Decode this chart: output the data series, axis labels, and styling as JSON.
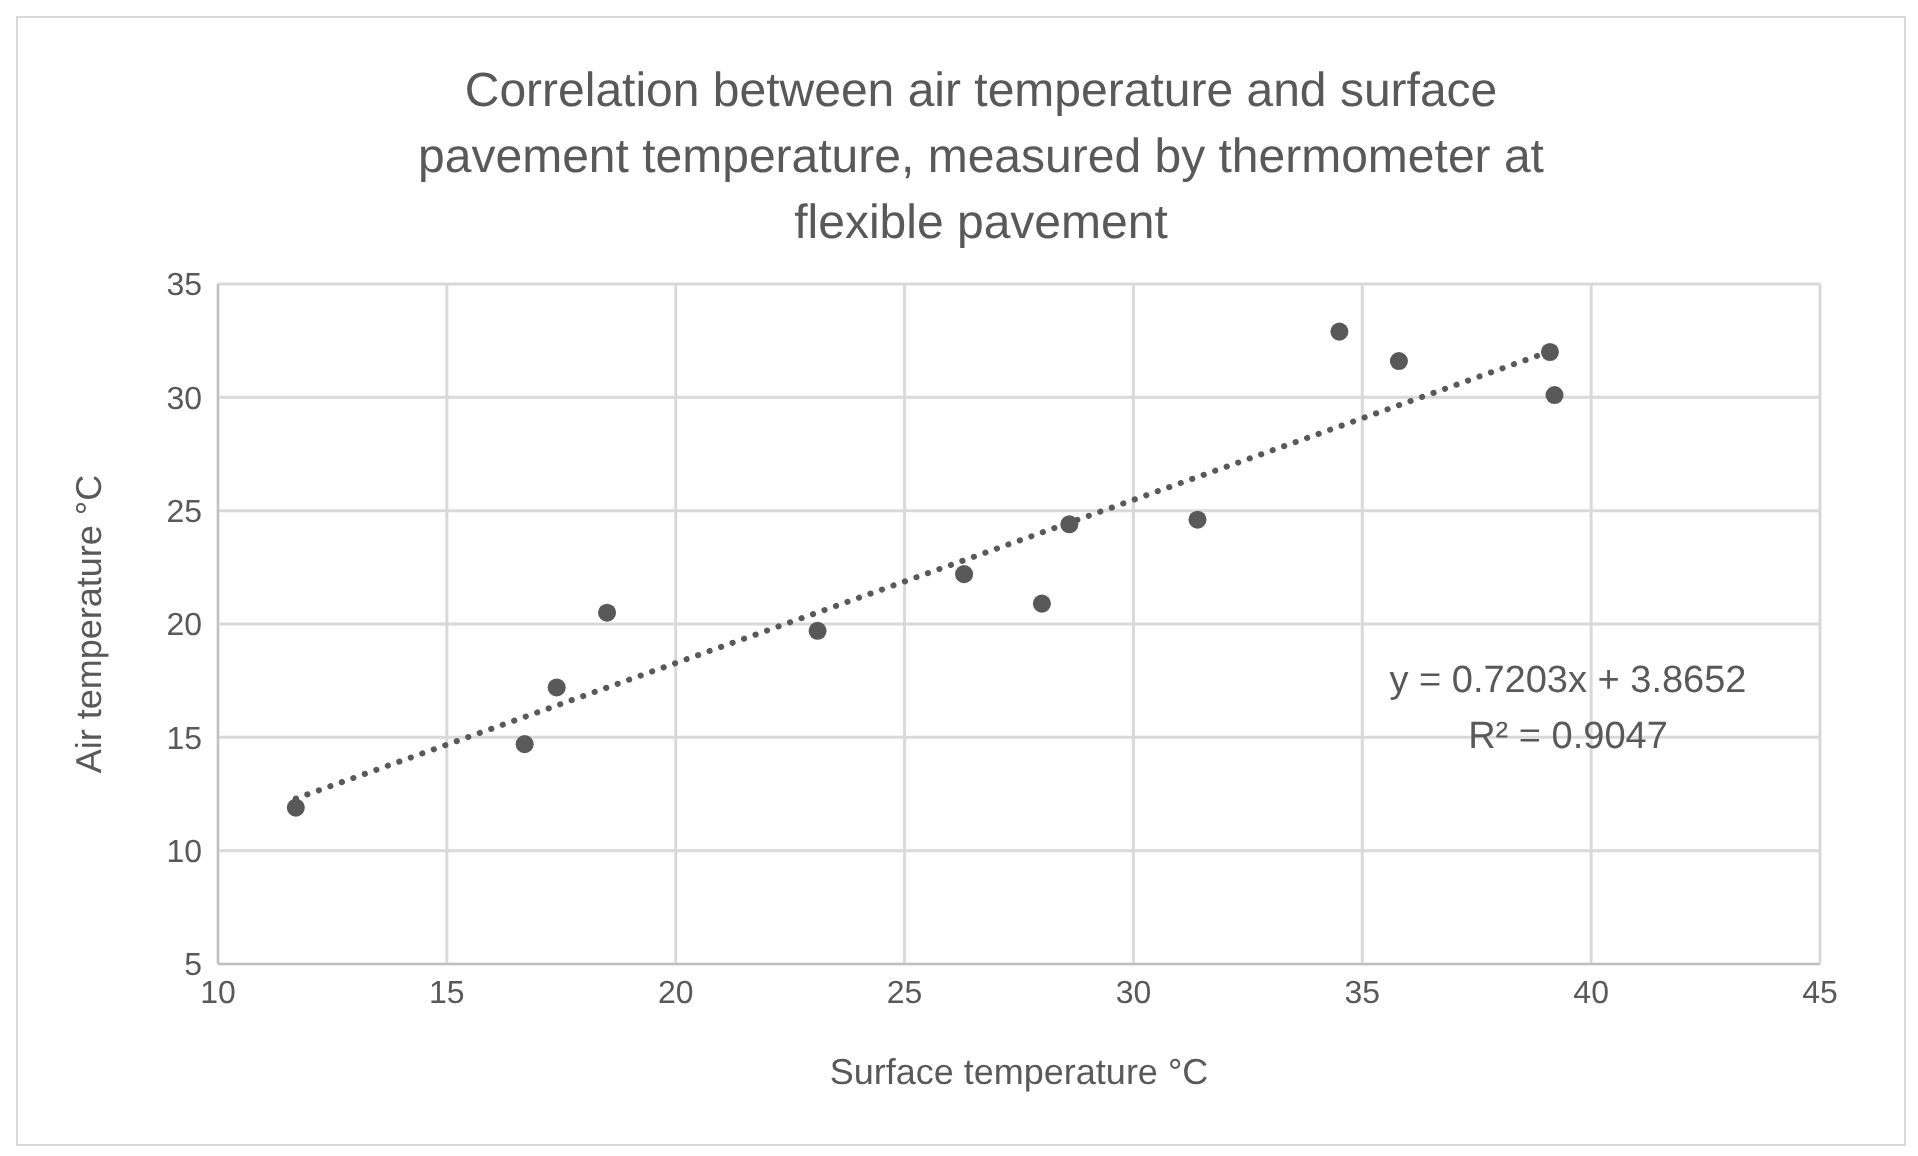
{
  "chart_data": {
    "type": "scatter",
    "title": "Correlation between air temperature and surface pavement temperature, measured by thermometer at flexible pavement",
    "xlabel": "Surface temperature °C",
    "ylabel": "Air temperature °C",
    "series": [
      {
        "color": "#595959",
        "x": [
          11.7,
          16.7,
          17.4,
          18.5,
          23.1,
          26.3,
          28.0,
          28.6,
          31.4,
          34.5,
          35.8,
          39.1,
          39.2
        ],
        "values": [
          11.9,
          14.7,
          17.2,
          20.5,
          19.7,
          22.2,
          20.9,
          24.4,
          24.6,
          32.9,
          31.6,
          32.0,
          30.1
        ],
        "marker": "circle"
      },
      {
        "type": "line",
        "color": "#595959",
        "x": [
          11.7,
          39.2
        ],
        "values": [
          12.3,
          32.1
        ],
        "line_style": "dotted",
        "marker": "none"
      }
    ],
    "xlim": [
      10,
      45
    ],
    "xticks": [
      10,
      15,
      20,
      25,
      30,
      35,
      40,
      45
    ],
    "ylim": [
      5,
      35
    ],
    "yticks": [
      5,
      10,
      15,
      20,
      25,
      30,
      35
    ],
    "grid": true,
    "annotations": [
      "y = 0.7203x + 3.8652",
      "R² = 0.9047"
    ]
  }
}
